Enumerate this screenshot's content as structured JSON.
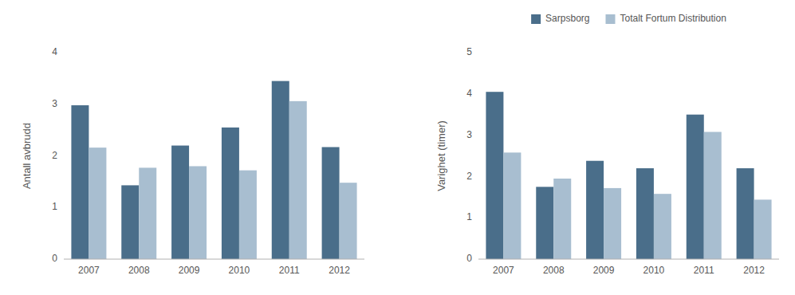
{
  "chart_data": [
    {
      "type": "bar",
      "categories": [
        "2007",
        "2008",
        "2009",
        "2010",
        "2011",
        "2012"
      ],
      "series": [
        {
          "name": "Sarpsborg",
          "color": "#4a6e8a",
          "values": [
            2.98,
            1.43,
            2.2,
            2.55,
            3.45,
            2.17
          ]
        },
        {
          "name": "Totalt Fortum Distribution",
          "color": "#a8bed0",
          "values": [
            2.16,
            1.77,
            1.8,
            1.72,
            3.06,
            1.48
          ]
        }
      ],
      "ylabel": "Antall avbrudd",
      "ylim": [
        0,
        4
      ],
      "yticks": [
        0,
        1,
        2,
        3,
        4
      ],
      "grid": false
    },
    {
      "type": "bar",
      "categories": [
        "2007",
        "2008",
        "2009",
        "2010",
        "2011",
        "2012"
      ],
      "series": [
        {
          "name": "Sarpsborg",
          "color": "#4a6e8a",
          "values": [
            4.05,
            1.75,
            2.38,
            2.2,
            3.5,
            2.2
          ]
        },
        {
          "name": "Totalt Fortum Distribution",
          "color": "#a8bed0",
          "values": [
            2.58,
            1.95,
            1.72,
            1.58,
            3.08,
            1.44
          ]
        }
      ],
      "ylabel": "Varighet (timer)",
      "ylim": [
        0,
        5
      ],
      "yticks": [
        0,
        1,
        2,
        3,
        4,
        5
      ],
      "grid": false,
      "legend": "top"
    }
  ]
}
